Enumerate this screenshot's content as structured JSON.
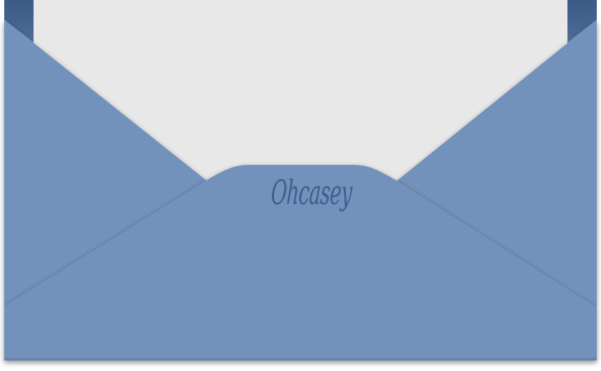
{
  "envelope": {
    "signature_text": "Ohcasey",
    "colors": {
      "envelope_body": "#7291bb",
      "envelope_shadow": "#566f95",
      "envelope_dark_edge": "#3f5f8c",
      "letter_paper": "#e8e8e8",
      "signature_ink": "#3d5f8f",
      "background": "#ffffff"
    }
  }
}
